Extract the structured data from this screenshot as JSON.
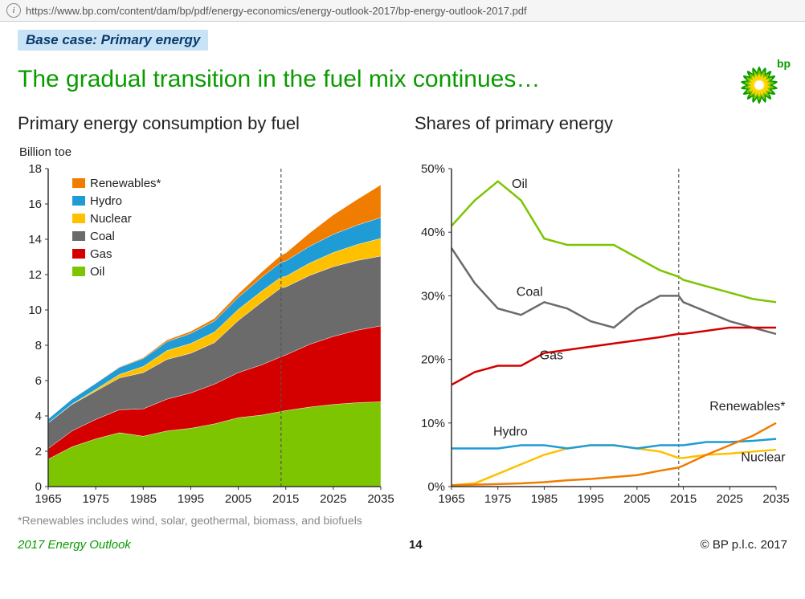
{
  "url": "https://www.bp.com/content/dam/bp/pdf/energy-economics/energy-outlook-2017/bp-energy-outlook-2017.pdf",
  "tag": "Base case: Primary energy",
  "headline": "The gradual transition in the fuel mix continues…",
  "logo": {
    "text": "bp",
    "text_color": "#0a9b00",
    "petals": "#ffd400",
    "core": "#ffffff",
    "ring1": "#7cc500",
    "ring2": "#0a9b00"
  },
  "colors": {
    "oil": "#7cc500",
    "gas": "#d40000",
    "coal": "#6b6b6b",
    "nuclear": "#ffc000",
    "hydro": "#1f9bd6",
    "renewables": "#f07c00",
    "axis": "#333333",
    "dash": "#555555",
    "grid": "#e0e0e0"
  },
  "chart1": {
    "title": "Primary energy consumption by fuel",
    "ylabel": "Billion toe",
    "type": "stacked-area",
    "xlim": [
      1965,
      2035
    ],
    "ylim": [
      0,
      18
    ],
    "ytick_step": 2,
    "xticks": [
      1965,
      1975,
      1985,
      1995,
      2005,
      2015,
      2025,
      2035
    ],
    "divider_x": 2014,
    "legend": [
      {
        "label": "Renewables*",
        "key": "renewables"
      },
      {
        "label": "Hydro",
        "key": "hydro"
      },
      {
        "label": "Nuclear",
        "key": "nuclear"
      },
      {
        "label": "Coal",
        "key": "coal"
      },
      {
        "label": "Gas",
        "key": "gas"
      },
      {
        "label": "Oil",
        "key": "oil"
      }
    ],
    "years": [
      1965,
      1970,
      1975,
      1980,
      1985,
      1990,
      1995,
      2000,
      2005,
      2010,
      2014,
      2015,
      2020,
      2025,
      2030,
      2035
    ],
    "series": {
      "oil": [
        1.55,
        2.25,
        2.7,
        3.05,
        2.85,
        3.15,
        3.3,
        3.55,
        3.9,
        4.05,
        4.25,
        4.3,
        4.5,
        4.65,
        4.75,
        4.8
      ],
      "gas": [
        0.6,
        0.9,
        1.1,
        1.3,
        1.55,
        1.8,
        2.0,
        2.25,
        2.55,
        2.85,
        3.1,
        3.15,
        3.55,
        3.85,
        4.1,
        4.3
      ],
      "coal": [
        1.45,
        1.5,
        1.6,
        1.8,
        2.05,
        2.25,
        2.25,
        2.35,
        2.95,
        3.55,
        3.9,
        3.85,
        3.9,
        3.95,
        3.95,
        3.95
      ],
      "nuclear": [
        0.01,
        0.02,
        0.1,
        0.2,
        0.35,
        0.5,
        0.55,
        0.6,
        0.63,
        0.63,
        0.6,
        0.6,
        0.7,
        0.8,
        0.9,
        1.0
      ],
      "hydro": [
        0.22,
        0.28,
        0.34,
        0.4,
        0.45,
        0.5,
        0.57,
        0.62,
        0.68,
        0.78,
        0.85,
        0.87,
        0.95,
        1.03,
        1.1,
        1.18
      ],
      "renewables": [
        0.01,
        0.01,
        0.02,
        0.03,
        0.05,
        0.1,
        0.12,
        0.15,
        0.2,
        0.3,
        0.4,
        0.45,
        0.75,
        1.1,
        1.45,
        1.85
      ]
    }
  },
  "chart2": {
    "title": "Shares of primary energy",
    "type": "line",
    "xlim": [
      1965,
      2035
    ],
    "ylim": [
      0,
      50
    ],
    "ytick_step": 10,
    "xticks": [
      1965,
      1975,
      1985,
      1995,
      2005,
      2015,
      2025,
      2035
    ],
    "divider_x": 2014,
    "line_labels": [
      {
        "text": "Oil",
        "x": 1978,
        "y": 47,
        "key": "oil"
      },
      {
        "text": "Coal",
        "x": 1979,
        "y": 30,
        "key": "coal"
      },
      {
        "text": "Gas",
        "x": 1984,
        "y": 20,
        "key": "gas"
      },
      {
        "text": "Hydro",
        "x": 1974,
        "y": 8,
        "key": "hydro"
      },
      {
        "text": "Renewables*",
        "x": 2037,
        "y": 12,
        "key": "renewables",
        "anchor": "end"
      },
      {
        "text": "Nuclear",
        "x": 2037,
        "y": 4,
        "key": "nuclear",
        "anchor": "end"
      }
    ],
    "years": [
      1965,
      1970,
      1975,
      1980,
      1985,
      1990,
      1995,
      2000,
      2005,
      2010,
      2014,
      2015,
      2020,
      2025,
      2030,
      2035
    ],
    "series": {
      "oil": [
        41,
        45,
        48,
        45,
        39,
        38,
        38,
        38,
        36,
        34,
        33,
        32.5,
        31.5,
        30.5,
        29.5,
        29
      ],
      "coal": [
        37.5,
        32,
        28,
        27,
        29,
        28,
        26,
        25,
        28,
        30,
        30,
        29,
        27.5,
        26,
        25,
        24
      ],
      "gas": [
        16,
        18,
        19,
        19,
        21,
        21.5,
        22,
        22.5,
        23,
        23.5,
        24,
        24,
        24.5,
        25,
        25,
        25
      ],
      "nuclear": [
        0.2,
        0.5,
        2,
        3.5,
        5,
        6,
        6.5,
        6.5,
        6,
        5.5,
        4.5,
        4.5,
        5,
        5.2,
        5.5,
        5.8
      ],
      "hydro": [
        6,
        6,
        6,
        6.5,
        6.5,
        6,
        6.5,
        6.5,
        6,
        6.5,
        6.5,
        6.5,
        7,
        7,
        7.2,
        7.5
      ],
      "renewables": [
        0.2,
        0.3,
        0.4,
        0.5,
        0.7,
        1,
        1.2,
        1.5,
        1.8,
        2.5,
        3,
        3.3,
        5,
        6.5,
        8,
        10
      ]
    }
  },
  "footnote": "*Renewables includes wind, solar, geothermal, biomass, and biofuels",
  "footer": {
    "left": "2017 Energy Outlook",
    "page": "14",
    "right": "© BP p.l.c. 2017"
  }
}
